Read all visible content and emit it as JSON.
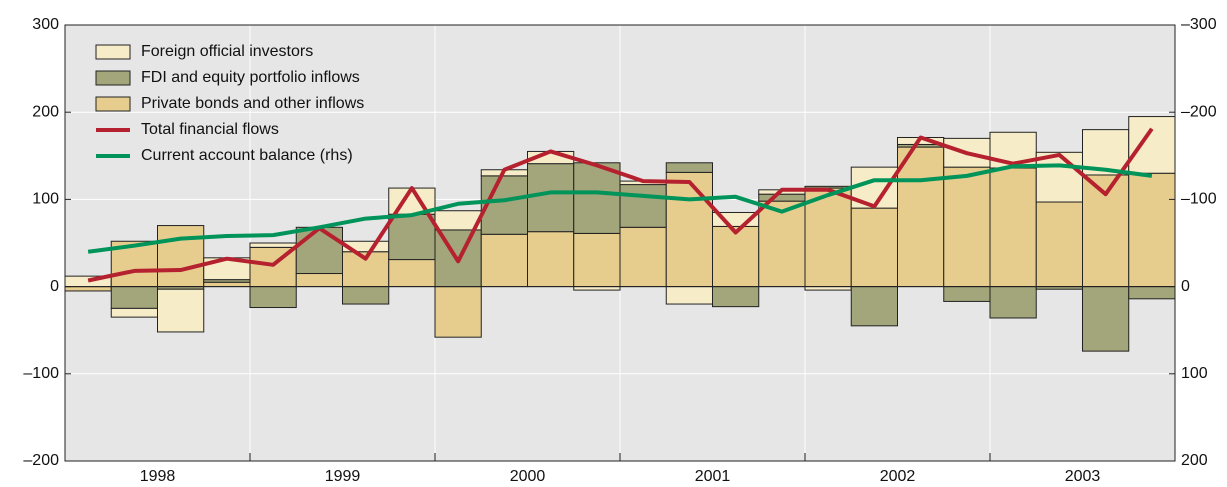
{
  "chart_data": {
    "type": "bar",
    "categories": [
      null,
      null,
      null,
      null,
      null,
      null,
      null,
      null,
      null,
      null,
      null,
      null,
      null,
      null,
      null,
      null,
      null,
      null,
      null,
      null,
      null,
      null,
      null,
      null
    ],
    "year_labels": [
      "1998",
      "1999",
      "2000",
      "2001",
      "2002",
      "2003"
    ],
    "series": [
      {
        "name": "Foreign official investors",
        "type": "bar",
        "color": "#f6ecc8",
        "values": [
          12,
          -10,
          -49,
          25,
          5,
          0,
          12,
          30,
          22,
          7,
          14,
          -4,
          4,
          -20,
          16,
          5,
          -4,
          47,
          8,
          33,
          41,
          57,
          52,
          65
        ]
      },
      {
        "name": "FDI and equity portfolio inflows",
        "type": "bar",
        "color": "#a3a57a",
        "values": [
          0,
          -25,
          -3,
          3,
          -24,
          53,
          -20,
          52,
          65,
          67,
          78,
          81,
          49,
          11,
          -23,
          8,
          2,
          -45,
          3,
          -17,
          -36,
          -3,
          -74,
          -14
        ]
      },
      {
        "name": "Private bonds and other inflows",
        "type": "bar",
        "color": "#e6cd8e",
        "values": [
          -5,
          52,
          70,
          5,
          45,
          15,
          40,
          31,
          -58,
          60,
          63,
          61,
          68,
          131,
          69,
          98,
          113,
          90,
          160,
          137,
          136,
          97,
          128,
          130
        ]
      },
      {
        "name": "Total financial flows",
        "type": "line",
        "color": "#b5212e",
        "values": [
          7,
          18,
          19,
          32,
          25,
          67,
          32,
          113,
          29,
          134,
          155,
          139,
          121,
          120,
          62,
          111,
          111,
          92,
          171,
          153,
          141,
          151,
          106,
          181
        ]
      },
      {
        "name": "Current account balance (rhs)",
        "type": "line",
        "axis": "y2",
        "color": "#00935a",
        "values": [
          -40,
          -47,
          -55,
          -58,
          -59,
          -68,
          -78,
          -82,
          -95,
          -99,
          -108,
          -108,
          -104,
          -100,
          -103,
          -86,
          -105,
          -122,
          -122,
          -127,
          -138,
          -139,
          -134,
          -127
        ]
      }
    ],
    "ylim": [
      -200,
      300
    ],
    "yticks": [
      {
        "value": -200,
        "label": "–200"
      },
      {
        "value": -100,
        "label": "–100"
      },
      0,
      100,
      200,
      300
    ],
    "y2lim": [
      200,
      -300
    ],
    "y2ticks": [
      {
        "value": -300,
        "label": "–300"
      },
      {
        "value": -200,
        "label": "–200"
      },
      {
        "value": -100,
        "label": "–100"
      },
      0,
      100,
      200
    ],
    "grid": true,
    "legend": "upper left"
  }
}
